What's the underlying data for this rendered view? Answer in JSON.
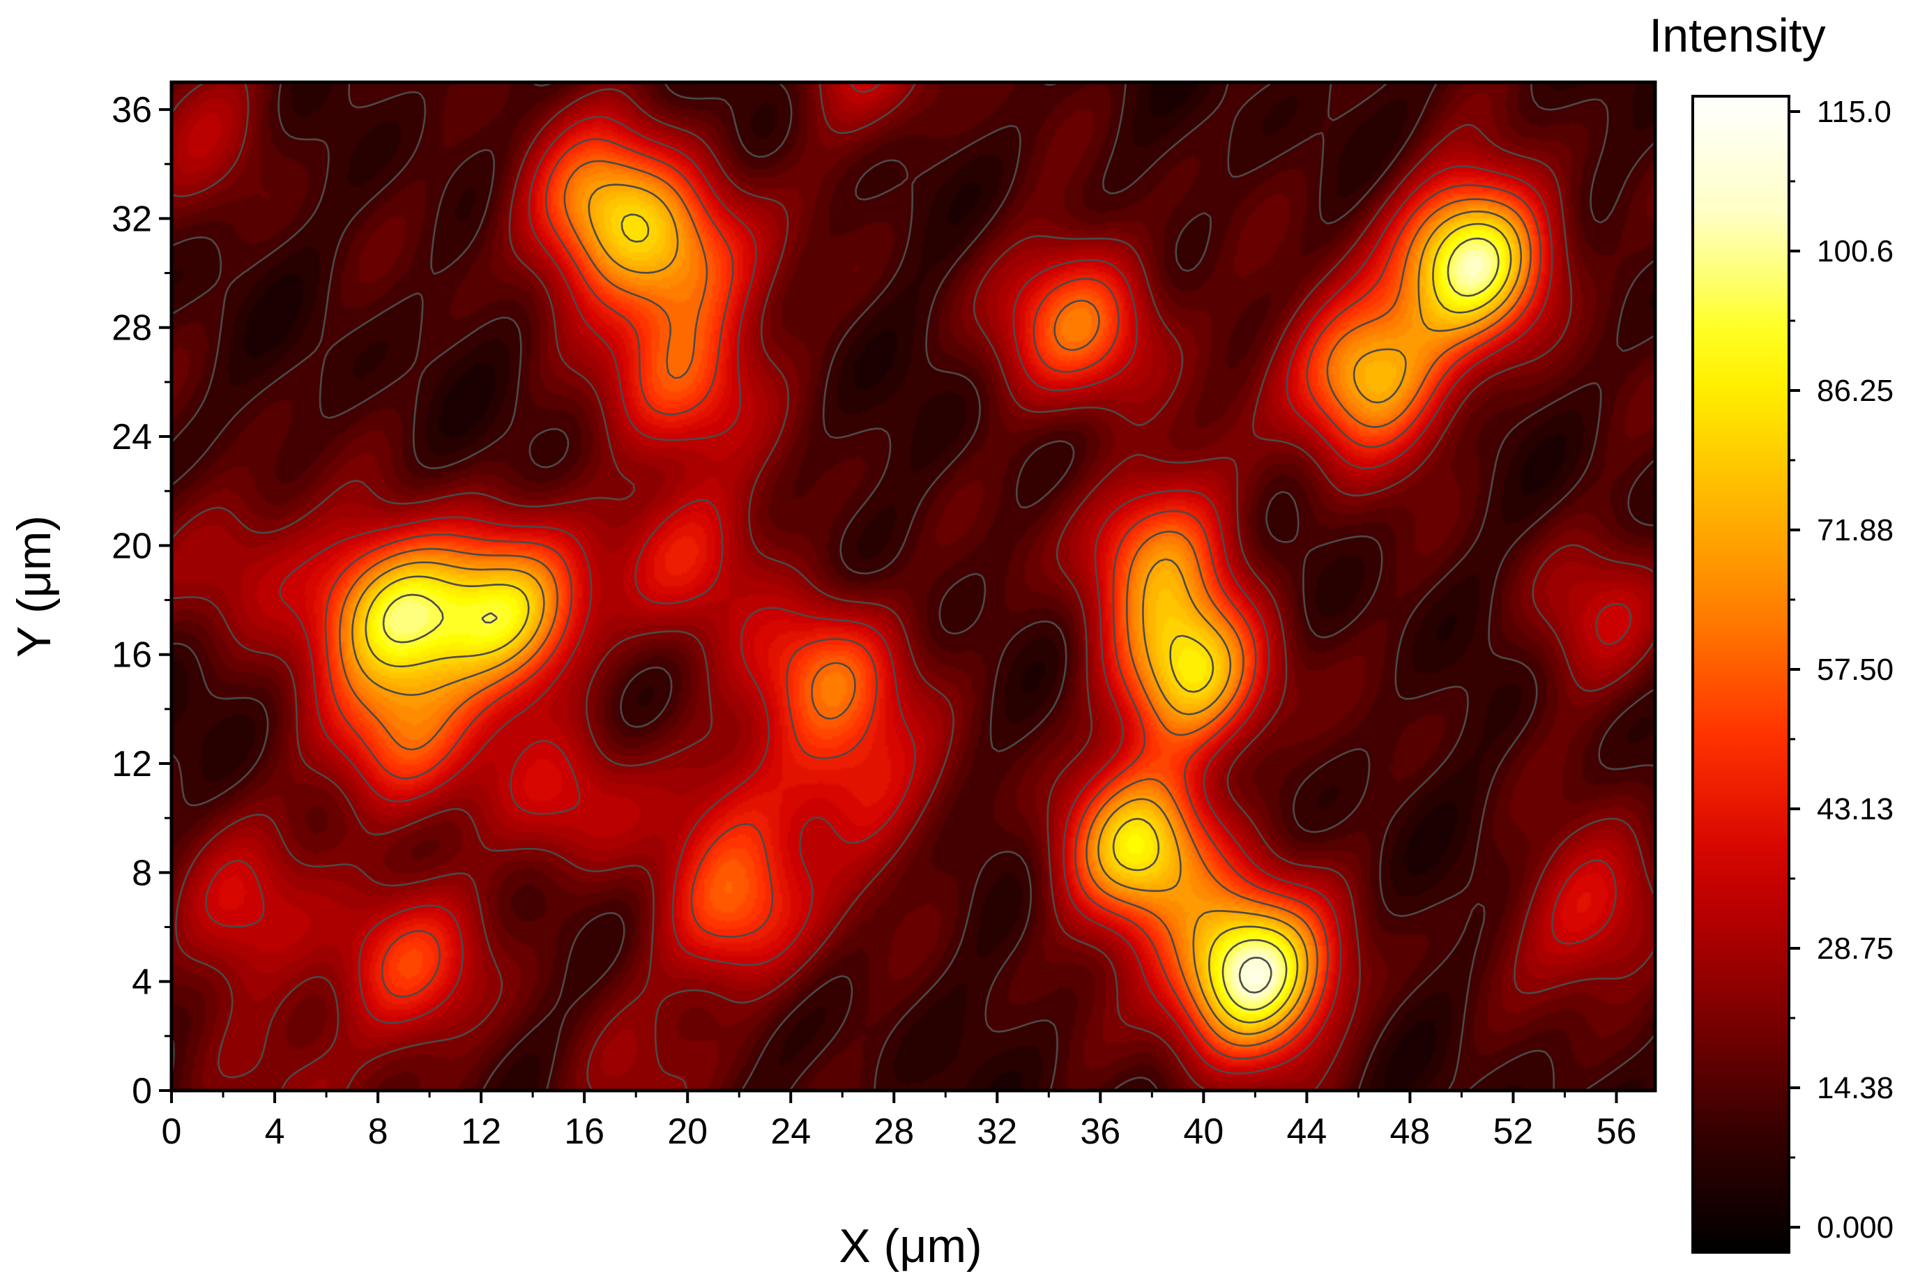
{
  "chart_data": {
    "type": "heatmap",
    "subtype": "contour map with filled color levels",
    "xlabel": "X (μm)",
    "ylabel": "Y (μm)",
    "xlim": [
      0,
      57.5
    ],
    "ylim": [
      0,
      37
    ],
    "x_ticks": [
      "0",
      "4",
      "8",
      "12",
      "16",
      "20",
      "24",
      "28",
      "32",
      "36",
      "40",
      "44",
      "48",
      "52",
      "56"
    ],
    "y_ticks": [
      "0",
      "4",
      "8",
      "12",
      "16",
      "20",
      "24",
      "28",
      "32",
      "36"
    ],
    "grid": false,
    "colorbar": {
      "title": "Intensity",
      "range": [
        0,
        115
      ],
      "tick_labels": [
        "0.000",
        "14.38",
        "28.75",
        "43.13",
        "57.50",
        "71.88",
        "86.25",
        "100.6",
        "115.0"
      ],
      "colormap": [
        "#000000",
        "#3a0000",
        "#8a0000",
        "#d00000",
        "#ff3000",
        "#ff8000",
        "#ffc000",
        "#ffff00",
        "#ffffc0",
        "#ffffff"
      ]
    },
    "background_level": 14,
    "contour_line_color": "#4a4a4a",
    "peaks": [
      {
        "x": 16.5,
        "y": 32.5,
        "value": 68
      },
      {
        "x": 19.8,
        "y": 30.5,
        "value": 62
      },
      {
        "x": 19.8,
        "y": 26.0,
        "value": 52
      },
      {
        "x": 35.3,
        "y": 28.2,
        "value": 62
      },
      {
        "x": 46.3,
        "y": 26.2,
        "value": 80
      },
      {
        "x": 50.5,
        "y": 30.5,
        "value": 100
      },
      {
        "x": 38.2,
        "y": 19.8,
        "value": 60
      },
      {
        "x": 39.5,
        "y": 15.3,
        "value": 82
      },
      {
        "x": 8.8,
        "y": 17.5,
        "value": 88
      },
      {
        "x": 13.0,
        "y": 17.5,
        "value": 80
      },
      {
        "x": 19.8,
        "y": 19.8,
        "value": 46
      },
      {
        "x": 2.5,
        "y": 19.5,
        "value": 36
      },
      {
        "x": 25.5,
        "y": 15.3,
        "value": 58
      },
      {
        "x": 8.8,
        "y": 12.8,
        "value": 56
      },
      {
        "x": 15.5,
        "y": 10.5,
        "value": 40
      },
      {
        "x": 26.5,
        "y": 11.0,
        "value": 42
      },
      {
        "x": 22.0,
        "y": 10.8,
        "value": 30
      },
      {
        "x": 37.5,
        "y": 8.8,
        "value": 84
      },
      {
        "x": 41.8,
        "y": 4.3,
        "value": 112
      },
      {
        "x": 22.0,
        "y": 6.5,
        "value": 56
      },
      {
        "x": 2.5,
        "y": 6.5,
        "value": 40
      },
      {
        "x": 9.0,
        "y": 4.5,
        "value": 52
      },
      {
        "x": 55.3,
        "y": 6.5,
        "value": 44
      },
      {
        "x": 55.3,
        "y": 17.3,
        "value": 34
      },
      {
        "x": 1.5,
        "y": 35.5,
        "value": 30
      },
      {
        "x": 27.0,
        "y": 37.5,
        "value": 34
      },
      {
        "x": 17.5,
        "y": 0.0,
        "value": 28
      },
      {
        "x": 5.0,
        "y": 0.0,
        "value": 26
      }
    ]
  }
}
